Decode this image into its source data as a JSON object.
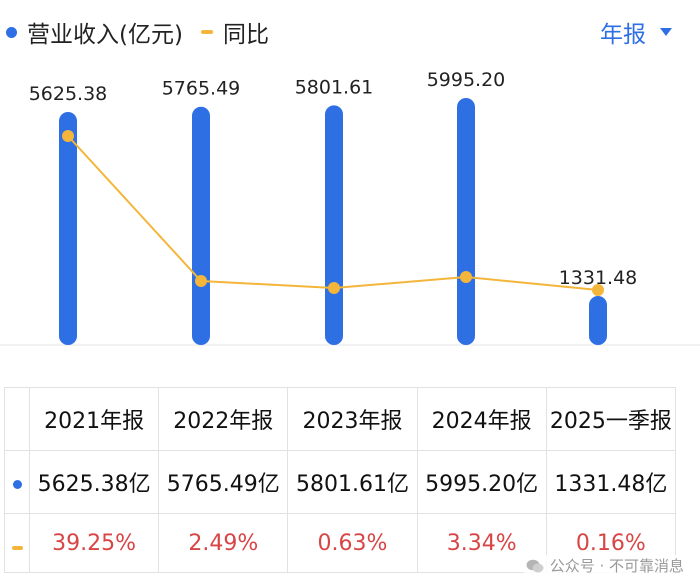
{
  "legend": {
    "revenue_label": "营业收入(亿元)",
    "yoy_label": "同比"
  },
  "period_selector": {
    "label": "年报"
  },
  "chart_data": {
    "type": "bar",
    "categories": [
      "2021年报",
      "2022年报",
      "2023年报",
      "2024年报",
      "2025一季报"
    ],
    "series": [
      {
        "name": "营业收入(亿元)",
        "values": [
          5625.38,
          5765.49,
          5801.61,
          5995.2,
          1331.48
        ],
        "labels": [
          "5625.38",
          "5765.49",
          "5801.61",
          "5995.20",
          "1331.48"
        ]
      },
      {
        "name": "同比",
        "type": "line",
        "values": [
          39.25,
          2.49,
          0.63,
          3.34,
          0.16
        ]
      }
    ],
    "colors": {
      "revenue": "#2f6fe4",
      "yoy": "#f4b63a",
      "negative_text": "#d84545"
    }
  },
  "table": {
    "headers": [
      "2021年报",
      "2022年报",
      "2023年报",
      "2024年报",
      "2025一季报"
    ],
    "revenue_row": [
      "5625.38亿",
      "5765.49亿",
      "5801.61亿",
      "5995.20亿",
      "1331.48亿"
    ],
    "yoy_row": [
      "39.25%",
      "2.49%",
      "0.63%",
      "3.34%",
      "0.16%"
    ]
  },
  "watermark": {
    "text": "公众号 · 不可靠消息"
  }
}
